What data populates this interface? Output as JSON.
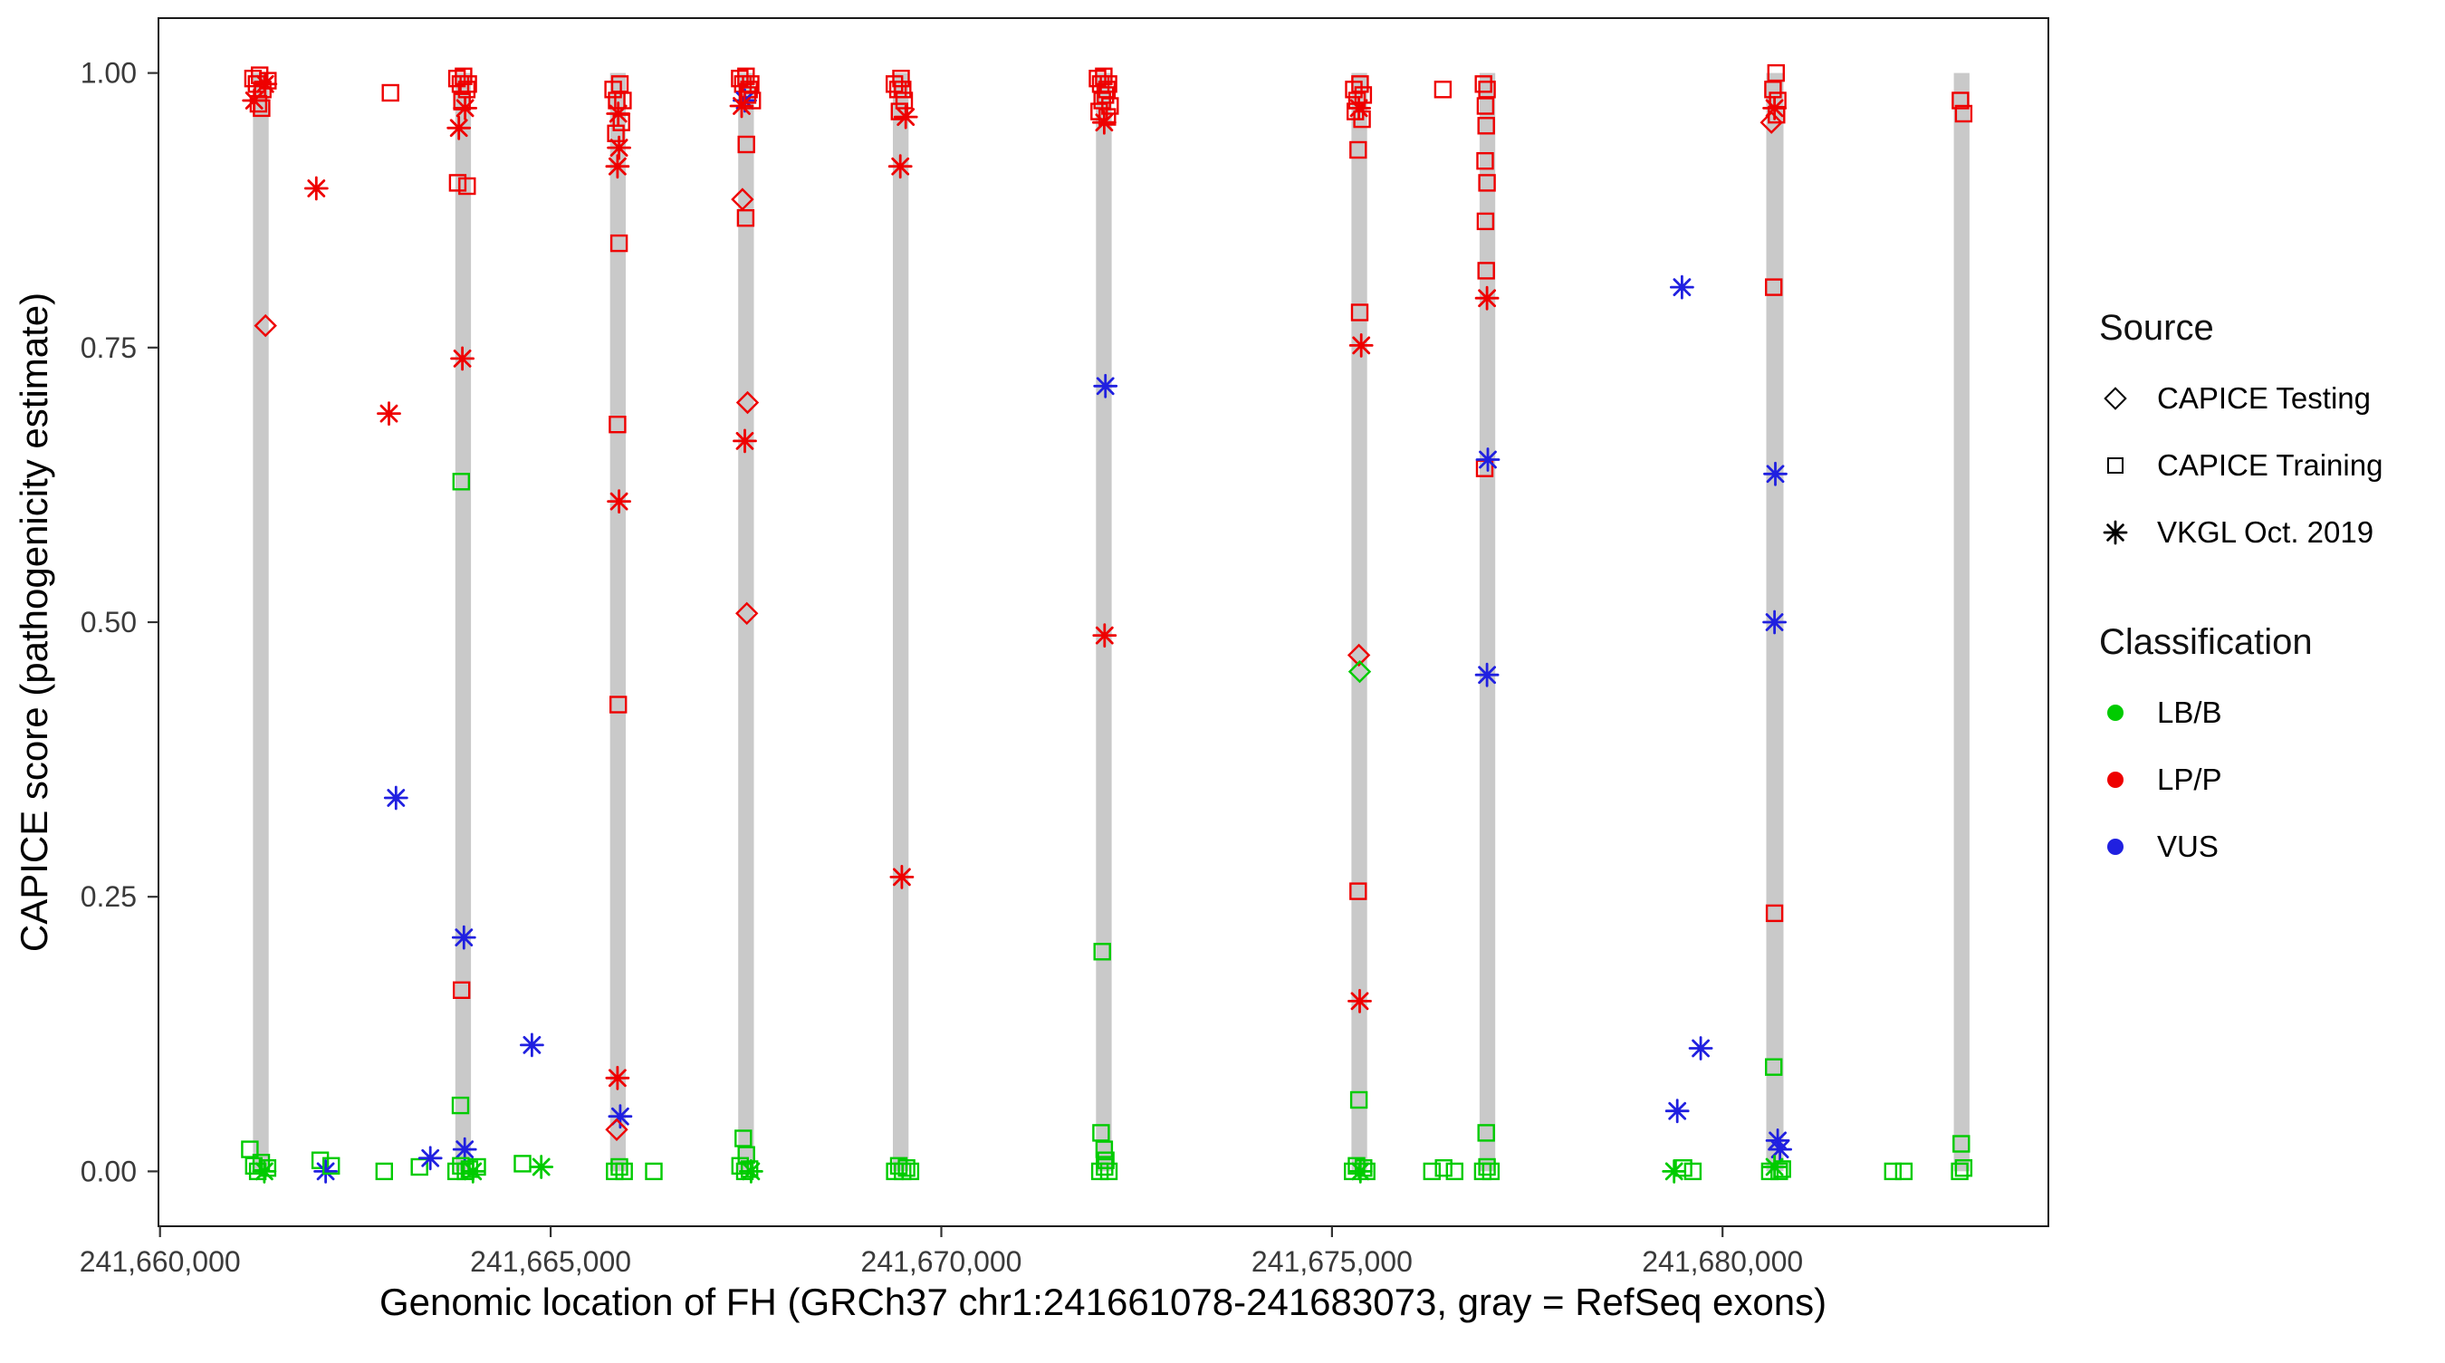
{
  "chart_data": {
    "type": "scatter",
    "title": "",
    "xlabel": "Genomic location of FH (GRCh37 chr1:241661078-241683073, gray = RefSeq exons)",
    "ylabel": "CAPICE score (pathogenicity estimate)",
    "xlim": [
      241659980,
      241684170
    ],
    "ylim": [
      -0.05,
      1.05
    ],
    "grid": false,
    "legend_position": "right",
    "x_ticks": [
      {
        "value": 241660000,
        "label": "241,660,000"
      },
      {
        "value": 241665000,
        "label": "241,665,000"
      },
      {
        "value": 241670000,
        "label": "241,670,000"
      },
      {
        "value": 241675000,
        "label": "241,675,000"
      },
      {
        "value": 241680000,
        "label": "241,680,000"
      }
    ],
    "y_ticks": [
      {
        "value": 0,
        "label": "0.00"
      },
      {
        "value": 0.25,
        "label": "0.25"
      },
      {
        "value": 0.5,
        "label": "0.50"
      },
      {
        "value": 0.75,
        "label": "0.75"
      },
      {
        "value": 1,
        "label": "1.00"
      }
    ],
    "exon_color": "#C9C9C9",
    "exons": [
      [
        241661190,
        241661390
      ],
      [
        241663780,
        241663980
      ],
      [
        241665760,
        241665960
      ],
      [
        241667400,
        241667600
      ],
      [
        241669380,
        241669580
      ],
      [
        241671980,
        241672180
      ],
      [
        241675250,
        241675450
      ],
      [
        241676890,
        241677090
      ],
      [
        241680560,
        241680780
      ],
      [
        241682960,
        241683160
      ]
    ],
    "classes": {
      "B": {
        "label": "LB/B",
        "color": "#00CB00"
      },
      "P": {
        "label": "LP/P",
        "color": "#EE0000"
      },
      "V": {
        "label": "VUS",
        "color": "#2020E0"
      }
    },
    "markers": {
      "s": "CAPICE Training (open square)",
      "d": "CAPICE Testing (open diamond)",
      "a": "VKGL Oct. 2019 (asterisk)"
    },
    "legend_source": {
      "title": "Source",
      "items": [
        {
          "label": "CAPICE Testing",
          "marker": "diamond"
        },
        {
          "label": "CAPICE Training",
          "marker": "square"
        },
        {
          "label": "VKGL Oct. 2019",
          "marker": "asterisk"
        }
      ]
    },
    "legend_classification": {
      "title": "Classification",
      "items": [
        {
          "class_key": "B",
          "label": "LB/B"
        },
        {
          "class_key": "P",
          "label": "LP/P"
        },
        {
          "class_key": "V",
          "label": "VUS"
        }
      ]
    },
    "points_format": [
      "genomic_position",
      "capice_score",
      "marker(s|d|a)",
      "class(B|P|V)"
    ],
    "points": [
      [
        241661190,
        0.995,
        "s",
        "P"
      ],
      [
        241661235,
        0.99,
        "s",
        "P"
      ],
      [
        241661275,
        0.998,
        "s",
        "P"
      ],
      [
        241661315,
        0.985,
        "s",
        "P"
      ],
      [
        241661205,
        0.975,
        "a",
        "P"
      ],
      [
        241661260,
        0.972,
        "s",
        "P"
      ],
      [
        241661345,
        0.99,
        "a",
        "P"
      ],
      [
        241661300,
        0.968,
        "s",
        "P"
      ],
      [
        241661380,
        0.993,
        "s",
        "P"
      ],
      [
        241661350,
        0.77,
        "d",
        "P"
      ],
      [
        241661150,
        0.02,
        "s",
        "B"
      ],
      [
        241661200,
        0.005,
        "s",
        "B"
      ],
      [
        241661250,
        0,
        "s",
        "B"
      ],
      [
        241661295,
        0.008,
        "s",
        "B"
      ],
      [
        241661335,
        0,
        "a",
        "B"
      ],
      [
        241661375,
        0.003,
        "s",
        "B"
      ],
      [
        241662050,
        0.01,
        "s",
        "B"
      ],
      [
        241662120,
        0,
        "a",
        "V"
      ],
      [
        241662190,
        0.005,
        "s",
        "B"
      ],
      [
        241662000,
        0.895,
        "a",
        "P"
      ],
      [
        241662950,
        0.982,
        "s",
        "P"
      ],
      [
        241662930,
        0.69,
        "a",
        "P"
      ],
      [
        241663020,
        0.34,
        "a",
        "V"
      ],
      [
        241662870,
        0,
        "s",
        "B"
      ],
      [
        241663320,
        0.004,
        "s",
        "B"
      ],
      [
        241663460,
        0.012,
        "a",
        "V"
      ],
      [
        241663800,
        0.995,
        "s",
        "P"
      ],
      [
        241663845,
        0.99,
        "s",
        "P"
      ],
      [
        241663885,
        0.997,
        "s",
        "P"
      ],
      [
        241663925,
        0.985,
        "s",
        "P"
      ],
      [
        241663865,
        0.974,
        "s",
        "P"
      ],
      [
        241663905,
        0.968,
        "a",
        "P"
      ],
      [
        241663945,
        0.99,
        "s",
        "P"
      ],
      [
        241663825,
        0.95,
        "a",
        "P"
      ],
      [
        241663810,
        0.9,
        "s",
        "P"
      ],
      [
        241663930,
        0.897,
        "s",
        "P"
      ],
      [
        241663870,
        0.74,
        "a",
        "P"
      ],
      [
        241663855,
        0.628,
        "s",
        "B"
      ],
      [
        241663890,
        0.213,
        "a",
        "V"
      ],
      [
        241663860,
        0.165,
        "s",
        "P"
      ],
      [
        241663845,
        0.06,
        "s",
        "B"
      ],
      [
        241663900,
        0.02,
        "a",
        "V"
      ],
      [
        241663790,
        0,
        "s",
        "B"
      ],
      [
        241663850,
        0.005,
        "s",
        "B"
      ],
      [
        241663910,
        0,
        "s",
        "B"
      ],
      [
        241663960,
        0.002,
        "s",
        "B"
      ],
      [
        241664005,
        0,
        "a",
        "B"
      ],
      [
        241664060,
        0.004,
        "s",
        "B"
      ],
      [
        241664760,
        0.115,
        "a",
        "V"
      ],
      [
        241664640,
        0.007,
        "s",
        "B"
      ],
      [
        241664880,
        0.004,
        "a",
        "B"
      ],
      [
        241665800,
        0.985,
        "s",
        "P"
      ],
      [
        241665845,
        0.975,
        "s",
        "P"
      ],
      [
        241665885,
        0.99,
        "s",
        "P"
      ],
      [
        241665865,
        0.963,
        "a",
        "P"
      ],
      [
        241665905,
        0.955,
        "s",
        "P"
      ],
      [
        241665925,
        0.975,
        "s",
        "P"
      ],
      [
        241665835,
        0.945,
        "s",
        "P"
      ],
      [
        241665875,
        0.932,
        "a",
        "P"
      ],
      [
        241665855,
        0.915,
        "a",
        "P"
      ],
      [
        241665875,
        0.845,
        "s",
        "P"
      ],
      [
        241665855,
        0.68,
        "s",
        "P"
      ],
      [
        241665875,
        0.61,
        "a",
        "P"
      ],
      [
        241665865,
        0.425,
        "s",
        "P"
      ],
      [
        241665855,
        0.085,
        "a",
        "P"
      ],
      [
        241665890,
        0.05,
        "a",
        "V"
      ],
      [
        241665845,
        0.038,
        "d",
        "P"
      ],
      [
        241665820,
        0,
        "s",
        "B"
      ],
      [
        241665880,
        0.004,
        "s",
        "B"
      ],
      [
        241665940,
        0,
        "s",
        "B"
      ],
      [
        241666320,
        0,
        "s",
        "B"
      ],
      [
        241667420,
        0.995,
        "s",
        "P"
      ],
      [
        241667460,
        0.99,
        "s",
        "P"
      ],
      [
        241667500,
        0.997,
        "s",
        "P"
      ],
      [
        241667540,
        0.985,
        "s",
        "P"
      ],
      [
        241667485,
        0.975,
        "a",
        "V"
      ],
      [
        241667520,
        0.98,
        "s",
        "P"
      ],
      [
        241667560,
        0.99,
        "s",
        "P"
      ],
      [
        241667445,
        0.97,
        "a",
        "P"
      ],
      [
        241667580,
        0.975,
        "s",
        "P"
      ],
      [
        241667505,
        0.935,
        "s",
        "P"
      ],
      [
        241667455,
        0.885,
        "d",
        "P"
      ],
      [
        241667495,
        0.868,
        "s",
        "P"
      ],
      [
        241667520,
        0.7,
        "d",
        "P"
      ],
      [
        241667485,
        0.665,
        "a",
        "P"
      ],
      [
        241667510,
        0.508,
        "d",
        "P"
      ],
      [
        241667465,
        0.03,
        "s",
        "B"
      ],
      [
        241667505,
        0.015,
        "s",
        "B"
      ],
      [
        241667425,
        0.005,
        "s",
        "B"
      ],
      [
        241667485,
        0,
        "s",
        "B"
      ],
      [
        241667545,
        0.002,
        "s",
        "B"
      ],
      [
        241667565,
        0,
        "a",
        "B"
      ],
      [
        241669400,
        0.99,
        "s",
        "P"
      ],
      [
        241669445,
        0.985,
        "s",
        "P"
      ],
      [
        241669485,
        0.995,
        "s",
        "P"
      ],
      [
        241669525,
        0.975,
        "s",
        "P"
      ],
      [
        241669465,
        0.965,
        "s",
        "P"
      ],
      [
        241669505,
        0.985,
        "s",
        "P"
      ],
      [
        241669545,
        0.96,
        "a",
        "P"
      ],
      [
        241669475,
        0.915,
        "a",
        "P"
      ],
      [
        241669495,
        0.268,
        "a",
        "P"
      ],
      [
        241669405,
        0,
        "s",
        "B"
      ],
      [
        241669455,
        0.005,
        "s",
        "B"
      ],
      [
        241669505,
        0,
        "s",
        "B"
      ],
      [
        241669555,
        0.003,
        "s",
        "B"
      ],
      [
        241669605,
        0,
        "s",
        "B"
      ],
      [
        241672000,
        0.995,
        "s",
        "P"
      ],
      [
        241672040,
        0.99,
        "s",
        "P"
      ],
      [
        241672080,
        0.997,
        "s",
        "P"
      ],
      [
        241672120,
        0.985,
        "s",
        "P"
      ],
      [
        241672060,
        0.975,
        "s",
        "P"
      ],
      [
        241672100,
        0.98,
        "s",
        "P"
      ],
      [
        241672140,
        0.99,
        "s",
        "P"
      ],
      [
        241672020,
        0.965,
        "s",
        "P"
      ],
      [
        241672160,
        0.97,
        "s",
        "P"
      ],
      [
        241672085,
        0.955,
        "a",
        "P"
      ],
      [
        241672125,
        0.96,
        "s",
        "P"
      ],
      [
        241672100,
        0.715,
        "a",
        "V"
      ],
      [
        241672090,
        0.488,
        "a",
        "P"
      ],
      [
        241672060,
        0.2,
        "s",
        "B"
      ],
      [
        241672045,
        0.035,
        "s",
        "B"
      ],
      [
        241672085,
        0.02,
        "s",
        "B"
      ],
      [
        241672105,
        0.01,
        "s",
        "B"
      ],
      [
        241672030,
        0,
        "s",
        "B"
      ],
      [
        241672090,
        0.004,
        "s",
        "B"
      ],
      [
        241672145,
        0,
        "s",
        "B"
      ],
      [
        241675280,
        0.985,
        "s",
        "P"
      ],
      [
        241675320,
        0.975,
        "s",
        "P"
      ],
      [
        241675360,
        0.99,
        "s",
        "P"
      ],
      [
        241675400,
        0.98,
        "s",
        "P"
      ],
      [
        241675300,
        0.965,
        "s",
        "P"
      ],
      [
        241675345,
        0.968,
        "a",
        "P"
      ],
      [
        241675385,
        0.958,
        "s",
        "P"
      ],
      [
        241675335,
        0.93,
        "s",
        "P"
      ],
      [
        241675355,
        0.782,
        "s",
        "P"
      ],
      [
        241675375,
        0.752,
        "a",
        "P"
      ],
      [
        241675345,
        0.47,
        "d",
        "P"
      ],
      [
        241675355,
        0.455,
        "d",
        "B"
      ],
      [
        241675335,
        0.255,
        "s",
        "P"
      ],
      [
        241675355,
        0.155,
        "a",
        "P"
      ],
      [
        241675345,
        0.065,
        "s",
        "B"
      ],
      [
        241675265,
        0,
        "s",
        "B"
      ],
      [
        241675315,
        0.005,
        "s",
        "B"
      ],
      [
        241675365,
        0,
        "a",
        "B"
      ],
      [
        241675405,
        0.003,
        "s",
        "B"
      ],
      [
        241675445,
        0,
        "s",
        "B"
      ],
      [
        241676420,
        0.985,
        "s",
        "P"
      ],
      [
        241676280,
        0,
        "s",
        "B"
      ],
      [
        241676430,
        0.003,
        "s",
        "B"
      ],
      [
        241676570,
        0,
        "s",
        "B"
      ],
      [
        241676940,
        0.99,
        "s",
        "P"
      ],
      [
        241676985,
        0.985,
        "s",
        "P"
      ],
      [
        241676965,
        0.97,
        "s",
        "P"
      ],
      [
        241676975,
        0.952,
        "s",
        "P"
      ],
      [
        241676960,
        0.92,
        "s",
        "P"
      ],
      [
        241676985,
        0.9,
        "s",
        "P"
      ],
      [
        241676965,
        0.865,
        "s",
        "P"
      ],
      [
        241676975,
        0.82,
        "s",
        "P"
      ],
      [
        241676985,
        0.795,
        "a",
        "P"
      ],
      [
        241676955,
        0.64,
        "s",
        "P"
      ],
      [
        241676995,
        0.648,
        "a",
        "V"
      ],
      [
        241676985,
        0.452,
        "a",
        "V"
      ],
      [
        241676975,
        0.035,
        "s",
        "B"
      ],
      [
        241676930,
        0,
        "s",
        "B"
      ],
      [
        241676985,
        0.004,
        "s",
        "B"
      ],
      [
        241677035,
        0,
        "s",
        "B"
      ],
      [
        241679480,
        0.805,
        "a",
        "V"
      ],
      [
        241679720,
        0.112,
        "a",
        "V"
      ],
      [
        241679420,
        0.055,
        "a",
        "V"
      ],
      [
        241679380,
        0,
        "a",
        "B"
      ],
      [
        241679500,
        0.003,
        "s",
        "B"
      ],
      [
        241679620,
        0,
        "s",
        "B"
      ],
      [
        241680685,
        1,
        "s",
        "P"
      ],
      [
        241680645,
        0.985,
        "s",
        "P"
      ],
      [
        241680705,
        0.975,
        "s",
        "P"
      ],
      [
        241680625,
        0.955,
        "d",
        "P"
      ],
      [
        241680665,
        0.968,
        "a",
        "P"
      ],
      [
        241680690,
        0.962,
        "s",
        "P"
      ],
      [
        241680655,
        0.805,
        "s",
        "P"
      ],
      [
        241680675,
        0.635,
        "a",
        "V"
      ],
      [
        241680665,
        0.5,
        "a",
        "V"
      ],
      [
        241680665,
        0.235,
        "s",
        "P"
      ],
      [
        241680655,
        0.095,
        "s",
        "B"
      ],
      [
        241680705,
        0.028,
        "a",
        "V"
      ],
      [
        241680735,
        0.02,
        "a",
        "V"
      ],
      [
        241680605,
        0,
        "s",
        "B"
      ],
      [
        241680665,
        0.004,
        "a",
        "B"
      ],
      [
        241680725,
        0,
        "s",
        "B"
      ],
      [
        241680765,
        0.002,
        "s",
        "B"
      ],
      [
        241682180,
        0,
        "s",
        "B"
      ],
      [
        241682320,
        0,
        "s",
        "B"
      ],
      [
        241683045,
        0.975,
        "s",
        "P"
      ],
      [
        241683085,
        0.963,
        "s",
        "P"
      ],
      [
        241683055,
        0.025,
        "s",
        "B"
      ],
      [
        241683035,
        0,
        "s",
        "B"
      ],
      [
        241683085,
        0.003,
        "s",
        "B"
      ]
    ]
  }
}
